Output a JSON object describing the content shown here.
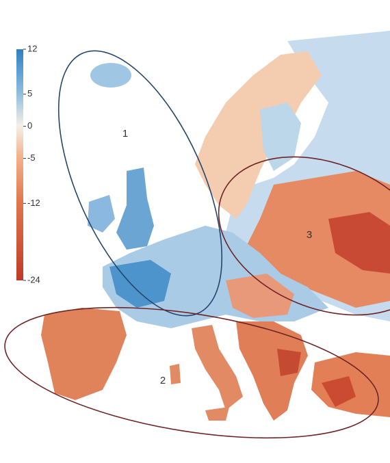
{
  "colorbar": {
    "lim": [
      -24,
      12
    ],
    "ticks": [
      12,
      5,
      0,
      -5,
      -12,
      -24
    ]
  },
  "regions": [
    {
      "label": "1"
    },
    {
      "label": "2"
    },
    {
      "label": "3"
    }
  ]
}
